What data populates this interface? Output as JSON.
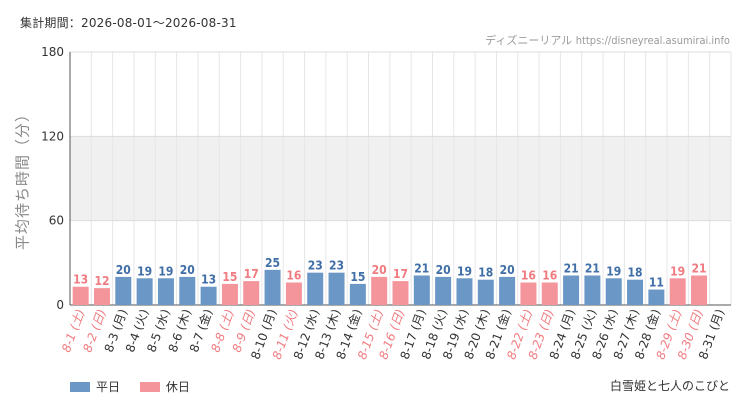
{
  "header": {
    "period_label": "集計期間：2026-08-01〜2026-08-31",
    "site_name": "ディズニーリアル",
    "site_url": "https://disneyreal.asumirai.info"
  },
  "footer": {
    "attraction": "白雪姫と七人のこびと"
  },
  "colors": {
    "weekday": "#6b97c6",
    "weekday_label": "#3f6fa6",
    "holiday": "#f4959b",
    "holiday_label": "#f07b80",
    "band": "#f0f0f0"
  },
  "chart_data": {
    "type": "bar",
    "title": "",
    "xlabel": "",
    "ylabel": "平均待ち時間（分）",
    "ylim": [
      0,
      180
    ],
    "yticks": [
      0,
      60,
      120,
      180
    ],
    "grid": true,
    "legend": {
      "position": "bottom-left",
      "entries": [
        "平日",
        "休日"
      ]
    },
    "categories": [
      "8-1 (土)",
      "8-2 (日)",
      "8-3 (月)",
      "8-4 (火)",
      "8-5 (水)",
      "8-6 (木)",
      "8-7 (金)",
      "8-8 (土)",
      "8-9 (日)",
      "8-10 (月)",
      "8-11 (火)",
      "8-12 (水)",
      "8-13 (木)",
      "8-14 (金)",
      "8-15 (土)",
      "8-16 (日)",
      "8-17 (月)",
      "8-18 (火)",
      "8-19 (水)",
      "8-20 (木)",
      "8-21 (金)",
      "8-22 (土)",
      "8-23 (日)",
      "8-24 (月)",
      "8-25 (火)",
      "8-26 (水)",
      "8-27 (木)",
      "8-28 (金)",
      "8-29 (土)",
      "8-30 (日)",
      "8-31 (月)"
    ],
    "values": [
      13,
      12,
      20,
      19,
      19,
      20,
      13,
      15,
      17,
      25,
      16,
      23,
      23,
      15,
      20,
      17,
      21,
      20,
      19,
      18,
      20,
      16,
      16,
      21,
      21,
      19,
      18,
      11,
      19,
      21,
      null
    ],
    "day_type": [
      "holiday",
      "holiday",
      "weekday",
      "weekday",
      "weekday",
      "weekday",
      "weekday",
      "holiday",
      "holiday",
      "weekday",
      "holiday",
      "weekday",
      "weekday",
      "weekday",
      "holiday",
      "holiday",
      "weekday",
      "weekday",
      "weekday",
      "weekday",
      "weekday",
      "holiday",
      "holiday",
      "weekday",
      "weekday",
      "weekday",
      "weekday",
      "weekday",
      "holiday",
      "holiday",
      "weekday"
    ],
    "series": [
      {
        "name": "平日",
        "type": "weekday"
      },
      {
        "name": "休日",
        "type": "holiday"
      }
    ]
  }
}
